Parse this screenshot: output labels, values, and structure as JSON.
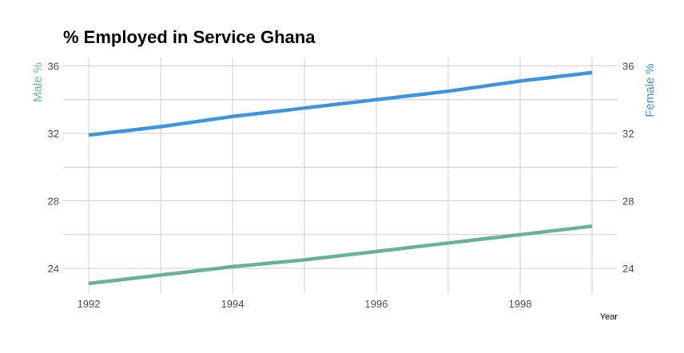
{
  "chart_data": {
    "type": "line",
    "title": "% Employed in Service Ghana",
    "xlabel": "Year",
    "ylabel_left": "Male %",
    "ylabel_right": "Female %",
    "x": [
      1992,
      1993,
      1994,
      1995,
      1996,
      1997,
      1998,
      1999
    ],
    "xlim": [
      1992,
      1999
    ],
    "x_ticks": [
      1992,
      1994,
      1996,
      1998
    ],
    "ylim": [
      23,
      36
    ],
    "y_ticks": [
      24,
      28,
      32,
      36
    ],
    "grid": true,
    "series": [
      {
        "name": "Male %",
        "axis": "left",
        "color": "#66b39a",
        "values": [
          23.1,
          23.6,
          24.1,
          24.5,
          25.0,
          25.5,
          26.0,
          26.5
        ]
      },
      {
        "name": "Female %",
        "axis": "right",
        "color": "#3d95dd",
        "values": [
          31.9,
          32.4,
          33.0,
          33.5,
          34.0,
          34.5,
          35.1,
          35.6
        ]
      }
    ]
  }
}
